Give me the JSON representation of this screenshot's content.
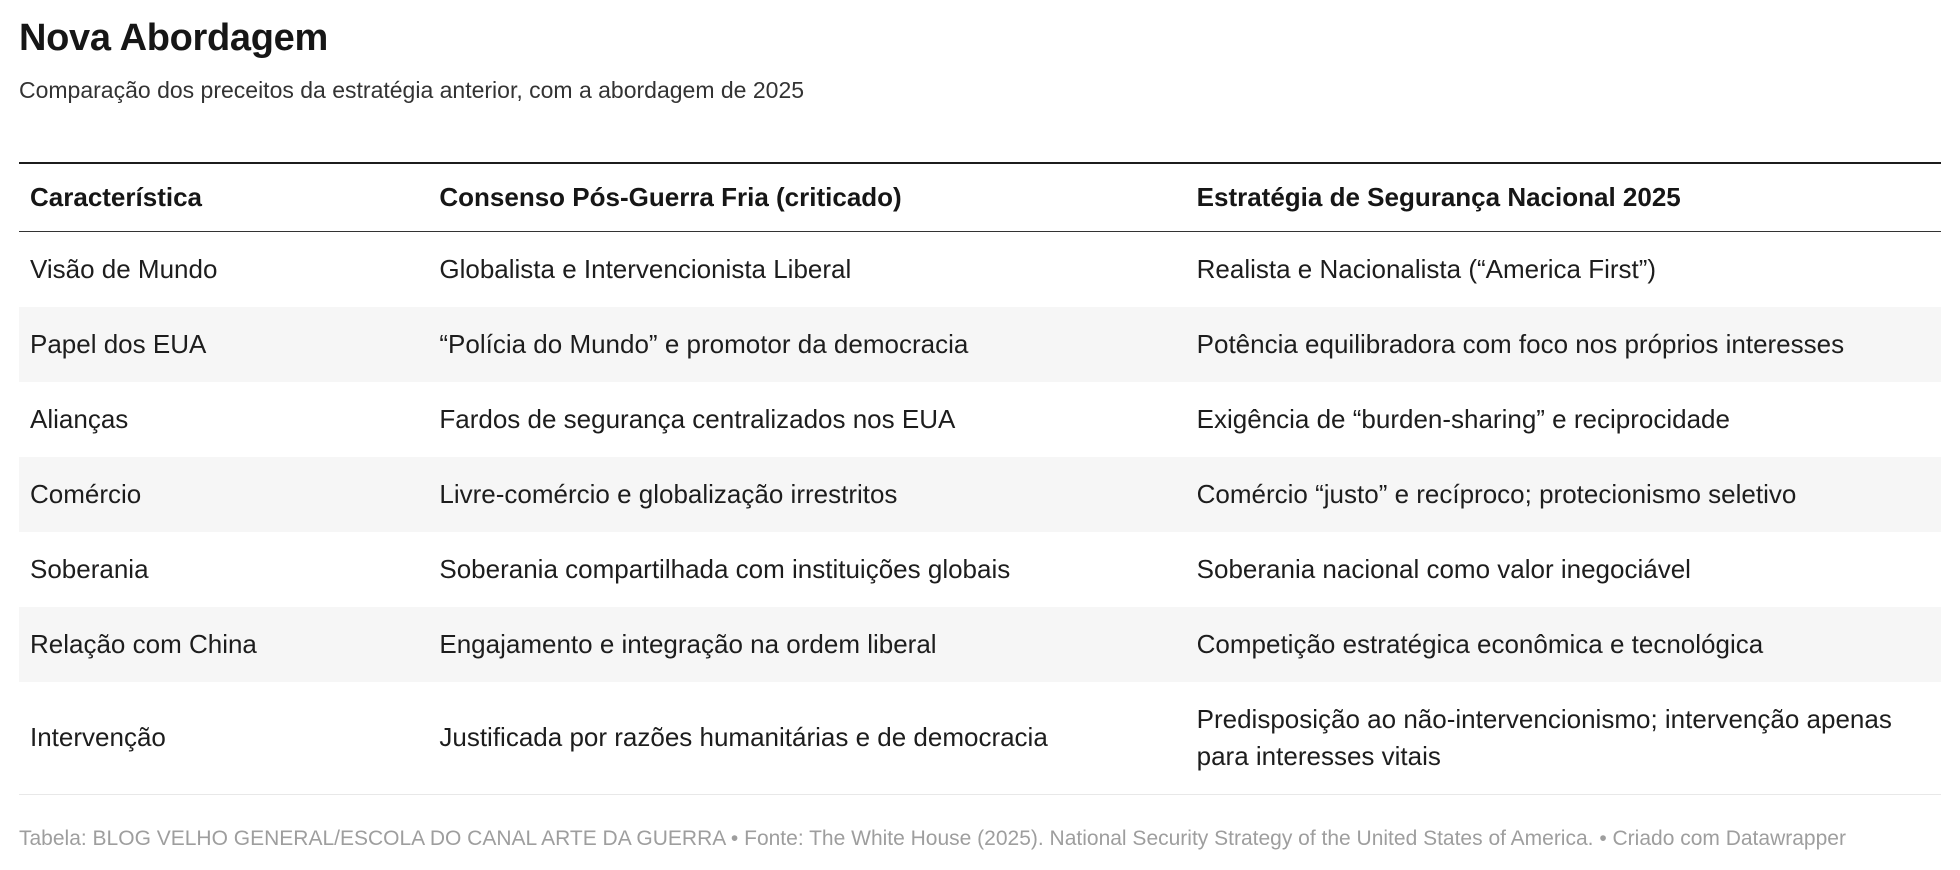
{
  "chart_data": {
    "type": "table",
    "title": "Nova Abordagem",
    "subtitle": "Comparação dos preceitos da estratégia anterior, com a abordagem de 2025",
    "columns": [
      "Característica",
      "Consenso Pós-Guerra Fria (criticado)",
      "Estratégia de Segurança Nacional 2025"
    ],
    "rows": [
      [
        "Visão de Mundo",
        "Globalista e Intervencionista Liberal",
        "Realista e Nacionalista (“America First”)"
      ],
      [
        "Papel dos EUA",
        "“Polícia do Mundo” e promotor da democracia",
        "Potência equilibradora com foco nos próprios interesses"
      ],
      [
        "Alianças",
        "Fardos de segurança centralizados nos EUA",
        "Exigência de “burden-sharing” e reciprocidade"
      ],
      [
        "Comércio",
        "Livre-comércio e globalização irrestritos",
        "Comércio “justo” e recíproco; protecionismo seletivo"
      ],
      [
        "Soberania",
        "Soberania compartilhada com instituições globais",
        "Soberania nacional como valor inegociável"
      ],
      [
        "Relação com China",
        "Engajamento e integração na ordem liberal",
        "Competição estratégica econômica e tecnológica"
      ],
      [
        "Intervenção",
        "Justificada por razões humanitárias e de democracia",
        "Predisposição ao não-intervencionismo; intervenção apenas para interesses vitais"
      ]
    ],
    "footer": "Tabela: BLOG VELHO GENERAL/ESCOLA DO CANAL ARTE DA GUERRA • Fonte: The White House (2025). National Security Strategy of the United States of America. • Criado com Datawrapper",
    "layout": {
      "legend_position": "none",
      "grid": "alternating-row-shading",
      "header_top_border": true
    }
  },
  "colors": {
    "title_text": "#161616",
    "subtitle_text": "#333333",
    "body_text": "#1d1d1d",
    "footer_text": "#9e9e9e",
    "alt_row_background": "#f6f6f6",
    "table_top_border": "#1c1c1c",
    "header_bottom_border": "#333333",
    "table_bottom_border": "#e8e8e8"
  }
}
